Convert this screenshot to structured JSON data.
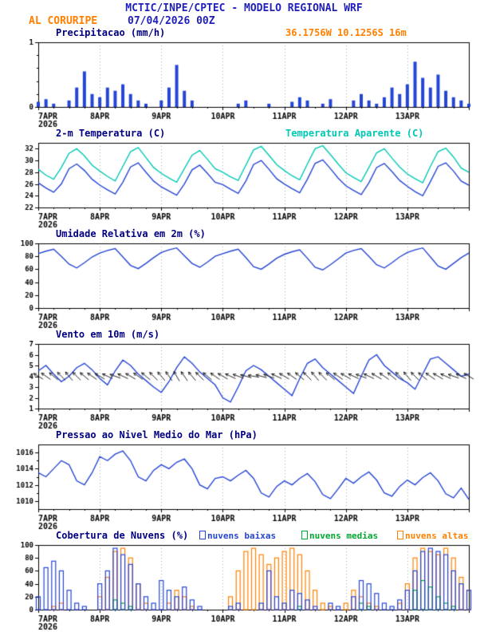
{
  "header": {
    "title": "MCTIC/INPE/CPTEC - MODELO REGIONAL WRF",
    "station": "AL CORURIPE",
    "datetime": "07/04/2026 00Z",
    "location": "36.1756W 10.1256S 16m"
  },
  "colors": {
    "navy": "#2020bb",
    "panel_title": "#000080",
    "orange": "#ff8000",
    "blue": "#2545d4",
    "cyan": "#00c8b4",
    "green": "#00a830",
    "axis": "#000000",
    "grid": "#aaaaaa"
  },
  "x_axis": {
    "xlim": [
      0,
      168
    ],
    "tick_hours": [
      0,
      24,
      48,
      72,
      96,
      120,
      144
    ],
    "tick_labels": [
      "7APR",
      "8APR",
      "9APR",
      "10APR",
      "11APR",
      "12APR",
      "13APR"
    ],
    "year_label": "2026"
  },
  "chart_data": [
    {
      "panel": "precipitation",
      "type": "bar",
      "title": "Precipitacao (mm/h)",
      "ylim": [
        0,
        1
      ],
      "yticks": [
        0,
        1
      ],
      "yticks_minor": [
        0.2,
        0.4,
        0.6,
        0.8
      ],
      "x_step": 3,
      "series": [
        {
          "name": "precipitacao",
          "color": "#2545d4",
          "values": [
            0.08,
            0.12,
            0.05,
            0,
            0.1,
            0.3,
            0.55,
            0.2,
            0.15,
            0.3,
            0.25,
            0.35,
            0.2,
            0.1,
            0.05,
            0,
            0.1,
            0.3,
            0.65,
            0.25,
            0.1,
            0,
            0,
            0,
            0,
            0,
            0.05,
            0.1,
            0,
            0,
            0.05,
            0,
            0,
            0.08,
            0.15,
            0.1,
            0,
            0.05,
            0.12,
            0,
            0,
            0.1,
            0.2,
            0.1,
            0.05,
            0.15,
            0.3,
            0.2,
            0.35,
            0.7,
            0.45,
            0.3,
            0.5,
            0.25,
            0.15,
            0.1,
            0.05
          ]
        }
      ]
    },
    {
      "panel": "temperature",
      "type": "line",
      "title": "2-m Temperatura (C)",
      "legend": "Temperatura Aparente (C)",
      "ylim": [
        22,
        33
      ],
      "yticks": [
        22,
        24,
        26,
        28,
        30,
        32
      ],
      "x_step": 3,
      "series": [
        {
          "name": "2-m Temperatura",
          "color": "#2545d4",
          "values": [
            26.2,
            25.3,
            24.6,
            26.0,
            28.6,
            29.4,
            28.3,
            26.8,
            25.8,
            25.0,
            24.3,
            26.3,
            28.9,
            29.6,
            28.0,
            26.5,
            25.5,
            24.8,
            24.1,
            26.0,
            28.4,
            29.2,
            27.8,
            26.3,
            25.9,
            25.1,
            24.4,
            26.5,
            29.3,
            30.0,
            28.5,
            26.9,
            26.0,
            25.2,
            24.5,
            26.8,
            29.5,
            30.1,
            28.6,
            27.0,
            25.7,
            24.9,
            24.2,
            26.2,
            28.8,
            29.5,
            28.1,
            26.6,
            25.6,
            24.7,
            24.0,
            26.4,
            29.0,
            29.6,
            28.2,
            26.5,
            25.8
          ]
        },
        {
          "name": "Temperatura Aparente",
          "color": "#00c8b4",
          "values": [
            28.5,
            27.5,
            26.8,
            28.8,
            31.2,
            32.0,
            30.8,
            29.2,
            28.2,
            27.3,
            26.5,
            29.0,
            31.5,
            32.2,
            30.5,
            28.8,
            27.8,
            27.0,
            26.3,
            28.6,
            30.9,
            31.7,
            30.2,
            28.6,
            28.0,
            27.2,
            26.6,
            29.2,
            31.8,
            32.4,
            30.9,
            29.3,
            28.3,
            27.4,
            26.7,
            29.4,
            32.0,
            32.5,
            31.0,
            29.4,
            27.9,
            27.1,
            26.4,
            28.8,
            31.3,
            32.0,
            30.4,
            28.9,
            27.7,
            26.9,
            26.2,
            29.0,
            31.5,
            32.1,
            30.6,
            28.7,
            28.0
          ]
        }
      ]
    },
    {
      "panel": "humidity",
      "type": "line",
      "title": "Umidade Relativa em 2m (%)",
      "ylim": [
        0,
        100
      ],
      "yticks": [
        0,
        20,
        40,
        60,
        80,
        100
      ],
      "x_step": 3,
      "series": [
        {
          "name": "umidade relativa",
          "color": "#2545d4",
          "values": [
            84,
            88,
            91,
            80,
            68,
            62,
            70,
            79,
            85,
            89,
            92,
            79,
            66,
            61,
            69,
            78,
            86,
            90,
            93,
            81,
            69,
            63,
            71,
            80,
            84,
            88,
            91,
            78,
            64,
            60,
            68,
            77,
            83,
            87,
            90,
            77,
            63,
            59,
            67,
            76,
            85,
            89,
            92,
            80,
            67,
            62,
            70,
            79,
            86,
            90,
            93,
            79,
            65,
            60,
            69,
            78,
            85
          ]
        }
      ]
    },
    {
      "panel": "wind",
      "type": "line",
      "title": "Vento em 10m (m/s)",
      "ylim": [
        1,
        7
      ],
      "yticks": [
        1,
        2,
        3,
        4,
        5,
        6,
        7
      ],
      "x_step": 3,
      "series": [
        {
          "name": "vento 10m",
          "color": "#2545d4",
          "values": [
            4.5,
            5.0,
            4.2,
            3.5,
            4.0,
            4.8,
            5.2,
            4.6,
            3.8,
            3.2,
            4.5,
            5.5,
            5.0,
            4.2,
            3.6,
            3.0,
            2.5,
            3.5,
            4.8,
            5.8,
            5.2,
            4.4,
            3.8,
            3.2,
            2.0,
            1.6,
            3.0,
            4.5,
            5.0,
            4.6,
            4.0,
            3.4,
            2.8,
            2.2,
            3.8,
            5.2,
            5.6,
            4.8,
            4.2,
            3.6,
            3.0,
            2.4,
            4.0,
            5.5,
            6.0,
            5.0,
            4.4,
            3.8,
            3.4,
            2.8,
            4.2,
            5.6,
            5.8,
            5.2,
            4.6,
            4.0,
            4.2
          ]
        }
      ],
      "barbs": {
        "y": 4,
        "color": "#111111",
        "directions": [
          120,
          125,
          130,
          135,
          140,
          135,
          130,
          125,
          120,
          115,
          110,
          115,
          120,
          125,
          130,
          135,
          140,
          145,
          150,
          145,
          140,
          135,
          130,
          125,
          120,
          115,
          110,
          105,
          100,
          105,
          110,
          115,
          120,
          125,
          130,
          135,
          140,
          135,
          130,
          125,
          120,
          115,
          110,
          115,
          120,
          125,
          130,
          135,
          140,
          135,
          130,
          125,
          120,
          115,
          110,
          115,
          120
        ]
      }
    },
    {
      "panel": "pressure",
      "type": "line",
      "title": "Pressao ao Nivel Medio do Mar (hPa)",
      "ylim": [
        1009,
        1017
      ],
      "yticks": [
        1010,
        1012,
        1014,
        1016
      ],
      "yticks_minor": [
        1011,
        1013,
        1015
      ],
      "x_step": 3,
      "series": [
        {
          "name": "pressao",
          "color": "#2545d4",
          "values": [
            1013.5,
            1013.0,
            1014.0,
            1015.0,
            1014.5,
            1012.5,
            1012.0,
            1013.5,
            1015.5,
            1015.0,
            1015.8,
            1016.2,
            1015.0,
            1013.0,
            1012.5,
            1013.8,
            1014.5,
            1014.0,
            1014.8,
            1015.2,
            1014.0,
            1012.0,
            1011.5,
            1012.8,
            1013.0,
            1012.5,
            1013.2,
            1013.8,
            1012.8,
            1011.0,
            1010.5,
            1011.8,
            1012.5,
            1012.0,
            1012.8,
            1013.4,
            1012.4,
            1010.8,
            1010.3,
            1011.5,
            1012.8,
            1012.2,
            1013.0,
            1013.6,
            1012.6,
            1011.0,
            1010.6,
            1011.8,
            1012.6,
            1012.0,
            1012.9,
            1013.5,
            1012.5,
            1010.9,
            1010.4,
            1011.6,
            1010.2
          ]
        }
      ]
    },
    {
      "panel": "clouds",
      "type": "outline-bar",
      "title": "Cobertura de Nuvens (%)",
      "ylim": [
        0,
        100
      ],
      "yticks": [
        0,
        20,
        40,
        60,
        80,
        100
      ],
      "x_step": 3,
      "legends": [
        {
          "label": "nuvens baixas",
          "color": "#2545d4"
        },
        {
          "label": "nuvens medias",
          "color": "#00a830"
        },
        {
          "label": "nuvens altas",
          "color": "#ff8000"
        }
      ],
      "series": [
        {
          "name": "nuvens baixas",
          "color": "#2545d4",
          "values": [
            20,
            65,
            75,
            60,
            30,
            10,
            5,
            0,
            40,
            60,
            95,
            85,
            70,
            40,
            20,
            10,
            45,
            30,
            20,
            35,
            15,
            5,
            0,
            0,
            0,
            5,
            10,
            0,
            0,
            10,
            60,
            20,
            10,
            30,
            25,
            15,
            5,
            0,
            10,
            5,
            0,
            20,
            45,
            40,
            25,
            10,
            5,
            15,
            30,
            60,
            90,
            95,
            90,
            85,
            60,
            40,
            30
          ]
        },
        {
          "name": "nuvens medias",
          "color": "#00a830",
          "values": [
            0,
            0,
            0,
            0,
            0,
            0,
            0,
            0,
            0,
            0,
            15,
            10,
            5,
            0,
            0,
            0,
            0,
            0,
            0,
            0,
            0,
            0,
            0,
            0,
            0,
            0,
            0,
            0,
            0,
            0,
            0,
            0,
            0,
            0,
            5,
            0,
            0,
            0,
            0,
            0,
            0,
            0,
            10,
            5,
            0,
            0,
            0,
            0,
            0,
            30,
            45,
            35,
            20,
            10,
            5,
            0,
            0
          ]
        },
        {
          "name": "nuvens altas",
          "color": "#ff8000",
          "values": [
            0,
            0,
            5,
            10,
            0,
            0,
            0,
            0,
            20,
            50,
            90,
            95,
            80,
            40,
            10,
            0,
            0,
            10,
            30,
            20,
            5,
            0,
            0,
            0,
            0,
            20,
            60,
            90,
            95,
            85,
            70,
            80,
            90,
            95,
            85,
            60,
            30,
            10,
            5,
            0,
            10,
            30,
            20,
            10,
            5,
            0,
            0,
            10,
            40,
            80,
            95,
            90,
            85,
            95,
            80,
            50,
            30
          ]
        }
      ]
    }
  ]
}
